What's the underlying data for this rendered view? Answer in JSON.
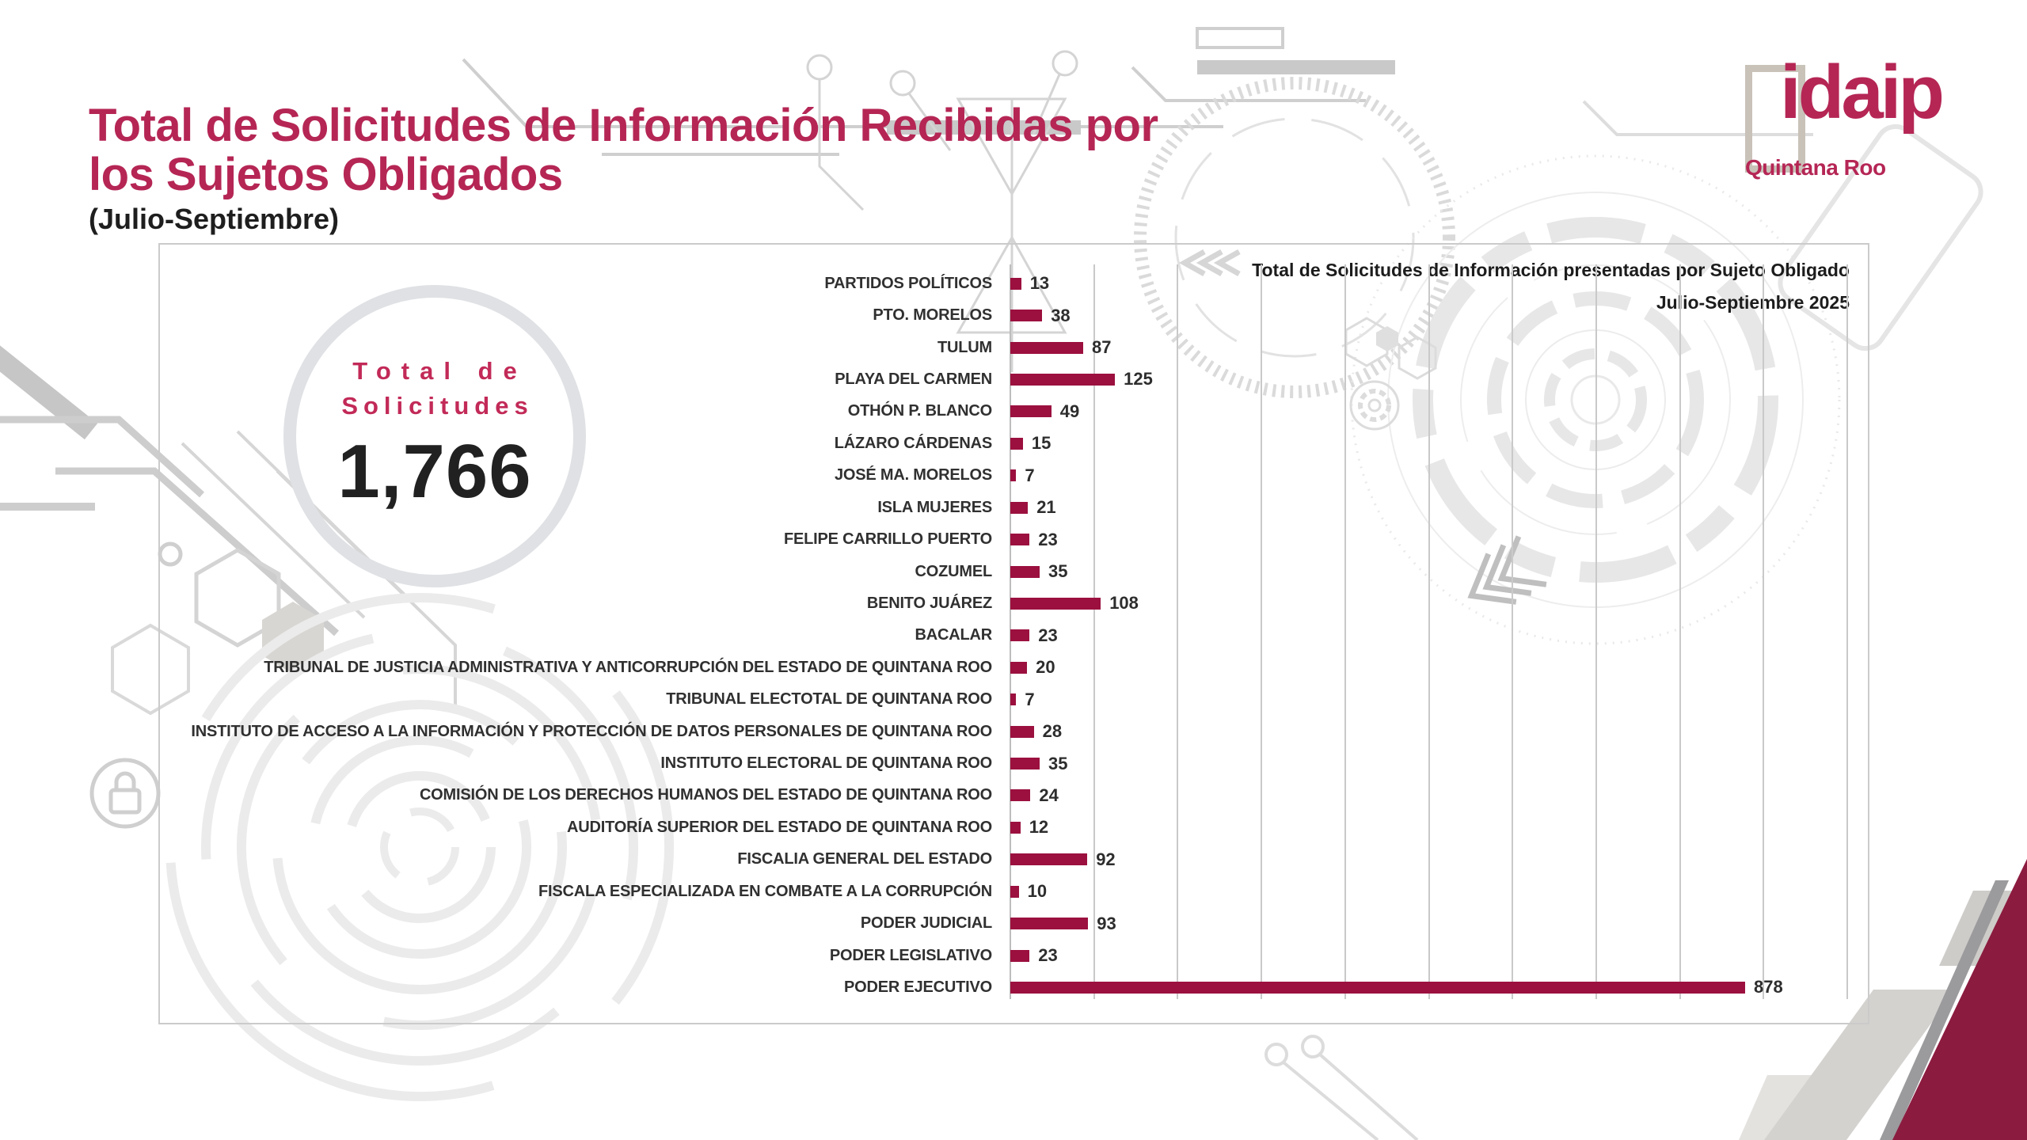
{
  "slide": {
    "title_line1": "Total de Solicitudes de Información Recibidas por",
    "title_line2": "los Sujetos Obligados",
    "subtitle": "(Julio-Septiembre)"
  },
  "logo": {
    "wordmark": "idaip",
    "region": "Quintana Roo"
  },
  "total_badge": {
    "label_line1": "Total de",
    "label_line2": "Solicitudes",
    "value": "1,766"
  },
  "chart_data": {
    "type": "bar",
    "orientation": "horizontal",
    "title": "Total de Solicitudes de Información presentadas por Sujeto Obligado",
    "subtitle": "Julio-Septiembre 2025",
    "categories": [
      "PARTIDOS POLÍTICOS",
      "PTO. MORELOS",
      "TULUM",
      "PLAYA DEL CARMEN",
      "OTHÓN P. BLANCO",
      "LÁZARO CÁRDENAS",
      "JOSÉ MA. MORELOS",
      "ISLA MUJERES",
      "FELIPE CARRILLO PUERTO",
      "COZUMEL",
      "BENITO JUÁREZ",
      "BACALAR",
      "TRIBUNAL DE JUSTICIA ADMINISTRATIVA Y ANTICORRUPCIÓN DEL ESTADO DE QUINTANA ROO",
      "TRIBUNAL ELECTOTAL DE QUINTANA ROO",
      "INSTITUTO DE ACCESO A LA INFORMACIÓN Y PROTECCIÓN DE DATOS PERSONALES DE QUINTANA ROO",
      "INSTITUTO ELECTORAL DE QUINTANA ROO",
      "COMISIÓN DE LOS DERECHOS HUMANOS DEL ESTADO DE QUINTANA ROO",
      "AUDITORÍA SUPERIOR DEL ESTADO DE QUINTANA ROO",
      "FISCALIA GENERAL DEL ESTADO",
      "FISCALA ESPECIALIZADA EN COMBATE A LA CORRUPCIÓN",
      "PODER JUDICIAL",
      "PODER LEGISLATIVO",
      "PODER EJECUTIVO"
    ],
    "values": [
      13,
      38,
      87,
      125,
      49,
      15,
      7,
      21,
      23,
      35,
      108,
      23,
      20,
      7,
      28,
      35,
      24,
      12,
      92,
      10,
      93,
      23,
      878
    ],
    "xlim": [
      0,
      1000
    ],
    "grid": true,
    "gridline_interval": 100,
    "legend": "none",
    "value_labels": true,
    "bar_color": "#9B103E"
  },
  "colors": {
    "accent": "#B52655",
    "bar": "#9B103E",
    "corner_maroon": "#8C1B40",
    "ring_gray": "#DFE1E4",
    "grid_gray": "#C9C9C9",
    "text_dark": "#2D2D2D"
  }
}
